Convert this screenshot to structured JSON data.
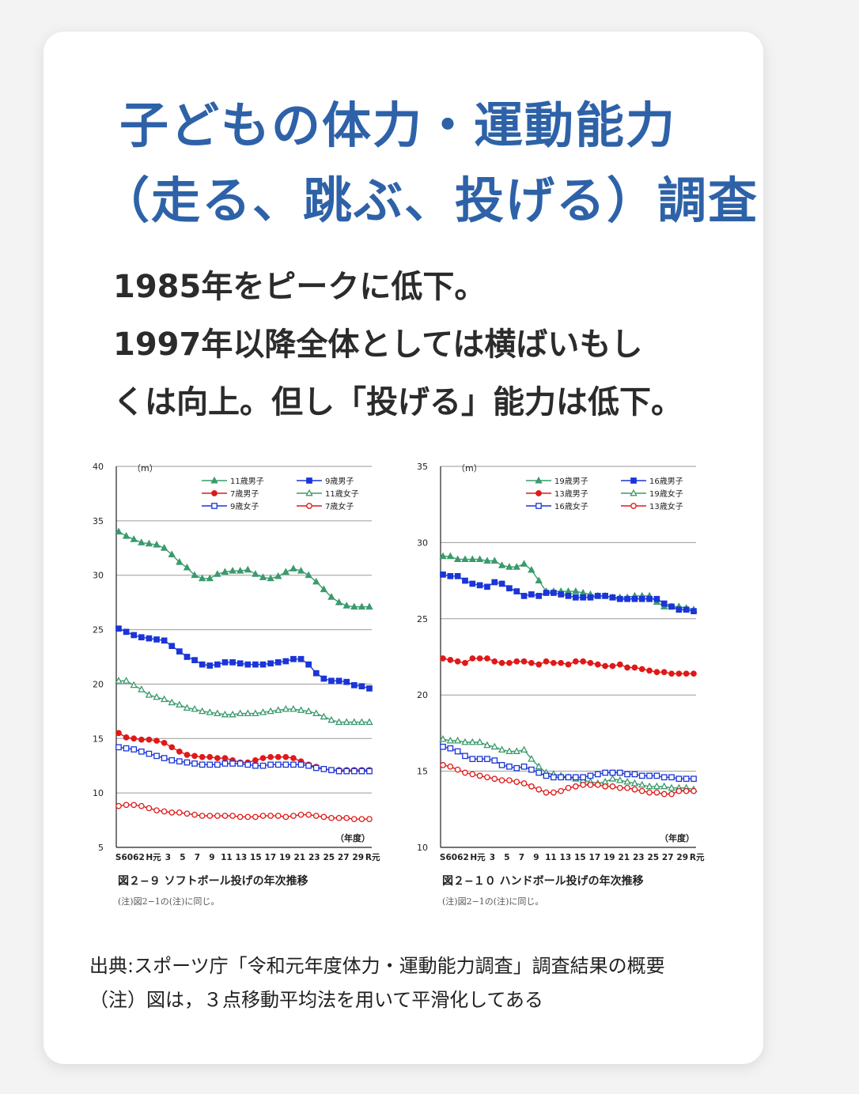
{
  "title": {
    "line1": "子どもの体力・運動能力",
    "line2": "（走る、跳ぶ、投げる）調査"
  },
  "lead": {
    "line1": "1985年をピークに低下。",
    "line2": "1997年以降全体としては横ばいもし",
    "line3": "くは向上。但し「投げる」能力は低下。"
  },
  "source": {
    "line1": "出典:スポーツ庁「令和元年度体力・運動能力調査」調査結果の概要",
    "line2": "（注）図は，３点移動平均法を用いて平滑化してある"
  },
  "colors": {
    "green": "#3a9a6c",
    "blue": "#1a35d8",
    "red": "#e01818",
    "title": "#2e62a8"
  },
  "chart_data": [
    {
      "type": "line",
      "title": "図２−９ ソフトボール投げの年次推移",
      "note": "(注)図2−1の(注)に同じ。",
      "unit": "（m）",
      "xlabel": "（年度）",
      "ylim": [
        5,
        40
      ],
      "yticks": [
        5,
        10,
        15,
        20,
        25,
        30,
        35,
        40
      ],
      "xticks": [
        "S60",
        "62",
        "H元",
        "3",
        "5",
        "7",
        "9",
        "11",
        "13",
        "15",
        "17",
        "19",
        "21",
        "23",
        "25",
        "27",
        "29",
        "R元"
      ],
      "x_start": 1985,
      "series": [
        {
          "name": "11歳男子",
          "color": "green",
          "marker": "triangle",
          "filled": true,
          "values": [
            34.0,
            33.6,
            33.3,
            33.0,
            32.9,
            32.8,
            32.5,
            31.9,
            31.2,
            30.7,
            30.0,
            29.7,
            29.7,
            30.1,
            30.3,
            30.4,
            30.4,
            30.5,
            30.1,
            29.8,
            29.7,
            29.9,
            30.3,
            30.6,
            30.4,
            30.0,
            29.4,
            28.7,
            28.0,
            27.5,
            27.2,
            27.1,
            27.1,
            27.1
          ]
        },
        {
          "name": "9歳男子",
          "color": "blue",
          "marker": "square",
          "filled": true,
          "values": [
            25.1,
            24.8,
            24.5,
            24.3,
            24.2,
            24.1,
            24.0,
            23.5,
            23.0,
            22.5,
            22.2,
            21.8,
            21.7,
            21.8,
            22.0,
            22.0,
            21.9,
            21.8,
            21.8,
            21.8,
            21.9,
            22.0,
            22.1,
            22.3,
            22.3,
            21.8,
            21.0,
            20.5,
            20.3,
            20.3,
            20.2,
            19.9,
            19.8,
            19.6
          ]
        },
        {
          "name": "7歳男子",
          "color": "red",
          "marker": "circle",
          "filled": true,
          "values": [
            15.5,
            15.1,
            15.0,
            14.9,
            14.9,
            14.8,
            14.6,
            14.2,
            13.8,
            13.5,
            13.4,
            13.3,
            13.3,
            13.2,
            13.2,
            13.0,
            12.8,
            12.8,
            13.0,
            13.2,
            13.3,
            13.3,
            13.3,
            13.2,
            12.9,
            12.6,
            12.4,
            12.2,
            12.1,
            12.1,
            12.1,
            12.1,
            12.1,
            12.1
          ]
        },
        {
          "name": "11歳女子",
          "color": "green",
          "marker": "triangle",
          "filled": false,
          "values": [
            20.3,
            20.3,
            19.9,
            19.5,
            19.0,
            18.8,
            18.6,
            18.3,
            18.1,
            17.8,
            17.7,
            17.5,
            17.4,
            17.3,
            17.2,
            17.2,
            17.3,
            17.3,
            17.3,
            17.4,
            17.5,
            17.6,
            17.7,
            17.7,
            17.6,
            17.5,
            17.3,
            17.0,
            16.7,
            16.5,
            16.5,
            16.5,
            16.5,
            16.5
          ]
        },
        {
          "name": "9歳女子",
          "color": "blue",
          "marker": "square",
          "filled": false,
          "values": [
            14.2,
            14.1,
            14.0,
            13.8,
            13.6,
            13.4,
            13.2,
            13.0,
            12.9,
            12.8,
            12.7,
            12.6,
            12.6,
            12.6,
            12.7,
            12.7,
            12.7,
            12.6,
            12.5,
            12.5,
            12.6,
            12.6,
            12.6,
            12.6,
            12.6,
            12.5,
            12.3,
            12.2,
            12.1,
            12.0,
            12.0,
            12.0,
            12.0,
            12.0
          ]
        },
        {
          "name": "7歳女子",
          "color": "red",
          "marker": "circle",
          "filled": false,
          "values": [
            8.8,
            8.9,
            8.9,
            8.8,
            8.6,
            8.4,
            8.3,
            8.2,
            8.2,
            8.1,
            8.0,
            7.9,
            7.9,
            7.9,
            7.9,
            7.9,
            7.8,
            7.8,
            7.8,
            7.9,
            7.9,
            7.9,
            7.8,
            7.9,
            8.0,
            8.0,
            7.9,
            7.8,
            7.7,
            7.7,
            7.7,
            7.6,
            7.6,
            7.6
          ]
        }
      ]
    },
    {
      "type": "line",
      "title": "図２−１０ ハンドボール投げの年次推移",
      "note": "(注)図2−1の(注)に同じ。",
      "unit": "（m）",
      "xlabel": "（年度）",
      "ylim": [
        10,
        35
      ],
      "yticks": [
        10,
        15,
        20,
        25,
        30,
        35
      ],
      "xticks": [
        "S60",
        "62",
        "H元",
        "3",
        "5",
        "7",
        "9",
        "11",
        "13",
        "15",
        "17",
        "19",
        "21",
        "23",
        "25",
        "27",
        "29",
        "R元"
      ],
      "x_start": 1985,
      "series": [
        {
          "name": "19歳男子",
          "color": "green",
          "marker": "triangle",
          "filled": true,
          "values": [
            29.1,
            29.1,
            28.9,
            28.9,
            28.9,
            28.9,
            28.8,
            28.8,
            28.5,
            28.4,
            28.4,
            28.6,
            28.2,
            27.5,
            26.8,
            26.8,
            26.8,
            26.8,
            26.8,
            26.7,
            26.6,
            26.5,
            26.5,
            26.4,
            26.4,
            26.4,
            26.5,
            26.5,
            26.5,
            26.1,
            25.8,
            25.8,
            25.8,
            25.7,
            25.6
          ]
        },
        {
          "name": "16歳男子",
          "color": "blue",
          "marker": "square",
          "filled": true,
          "values": [
            27.9,
            27.8,
            27.8,
            27.5,
            27.3,
            27.2,
            27.1,
            27.4,
            27.3,
            27.0,
            26.8,
            26.5,
            26.6,
            26.5,
            26.7,
            26.7,
            26.6,
            26.5,
            26.4,
            26.4,
            26.4,
            26.5,
            26.5,
            26.4,
            26.3,
            26.3,
            26.3,
            26.3,
            26.3,
            26.3,
            26.0,
            25.8,
            25.6,
            25.6,
            25.5
          ]
        },
        {
          "name": "13歳男子",
          "color": "red",
          "marker": "circle",
          "filled": true,
          "values": [
            22.4,
            22.3,
            22.2,
            22.1,
            22.4,
            22.4,
            22.4,
            22.2,
            22.1,
            22.1,
            22.2,
            22.2,
            22.1,
            22.0,
            22.2,
            22.1,
            22.1,
            22.0,
            22.2,
            22.2,
            22.1,
            22.0,
            21.9,
            21.9,
            22.0,
            21.8,
            21.8,
            21.7,
            21.6,
            21.5,
            21.5,
            21.4,
            21.4,
            21.4,
            21.4
          ]
        },
        {
          "name": "19歳女子",
          "color": "green",
          "marker": "triangle",
          "filled": false,
          "values": [
            17.1,
            17.0,
            17.0,
            16.9,
            16.9,
            16.9,
            16.7,
            16.6,
            16.4,
            16.3,
            16.3,
            16.4,
            15.8,
            15.3,
            14.9,
            14.8,
            14.7,
            14.6,
            14.5,
            14.4,
            14.3,
            14.2,
            14.3,
            14.5,
            14.4,
            14.3,
            14.2,
            14.1,
            14.0,
            14.0,
            14.0,
            13.9,
            13.9,
            13.9,
            13.8
          ]
        },
        {
          "name": "16歳女子",
          "color": "blue",
          "marker": "square",
          "filled": false,
          "values": [
            16.6,
            16.5,
            16.3,
            16.0,
            15.8,
            15.8,
            15.8,
            15.7,
            15.4,
            15.3,
            15.2,
            15.3,
            15.1,
            14.9,
            14.7,
            14.6,
            14.6,
            14.6,
            14.6,
            14.6,
            14.7,
            14.8,
            14.9,
            14.9,
            14.9,
            14.8,
            14.8,
            14.7,
            14.7,
            14.7,
            14.6,
            14.6,
            14.5,
            14.5,
            14.5
          ]
        },
        {
          "name": "13歳女子",
          "color": "red",
          "marker": "circle",
          "filled": false,
          "values": [
            15.4,
            15.3,
            15.1,
            14.9,
            14.8,
            14.7,
            14.6,
            14.5,
            14.4,
            14.4,
            14.3,
            14.2,
            14.0,
            13.8,
            13.6,
            13.6,
            13.7,
            13.9,
            14.0,
            14.1,
            14.1,
            14.1,
            14.0,
            14.0,
            13.9,
            13.9,
            13.8,
            13.7,
            13.6,
            13.6,
            13.5,
            13.5,
            13.7,
            13.7,
            13.7
          ]
        }
      ]
    }
  ]
}
